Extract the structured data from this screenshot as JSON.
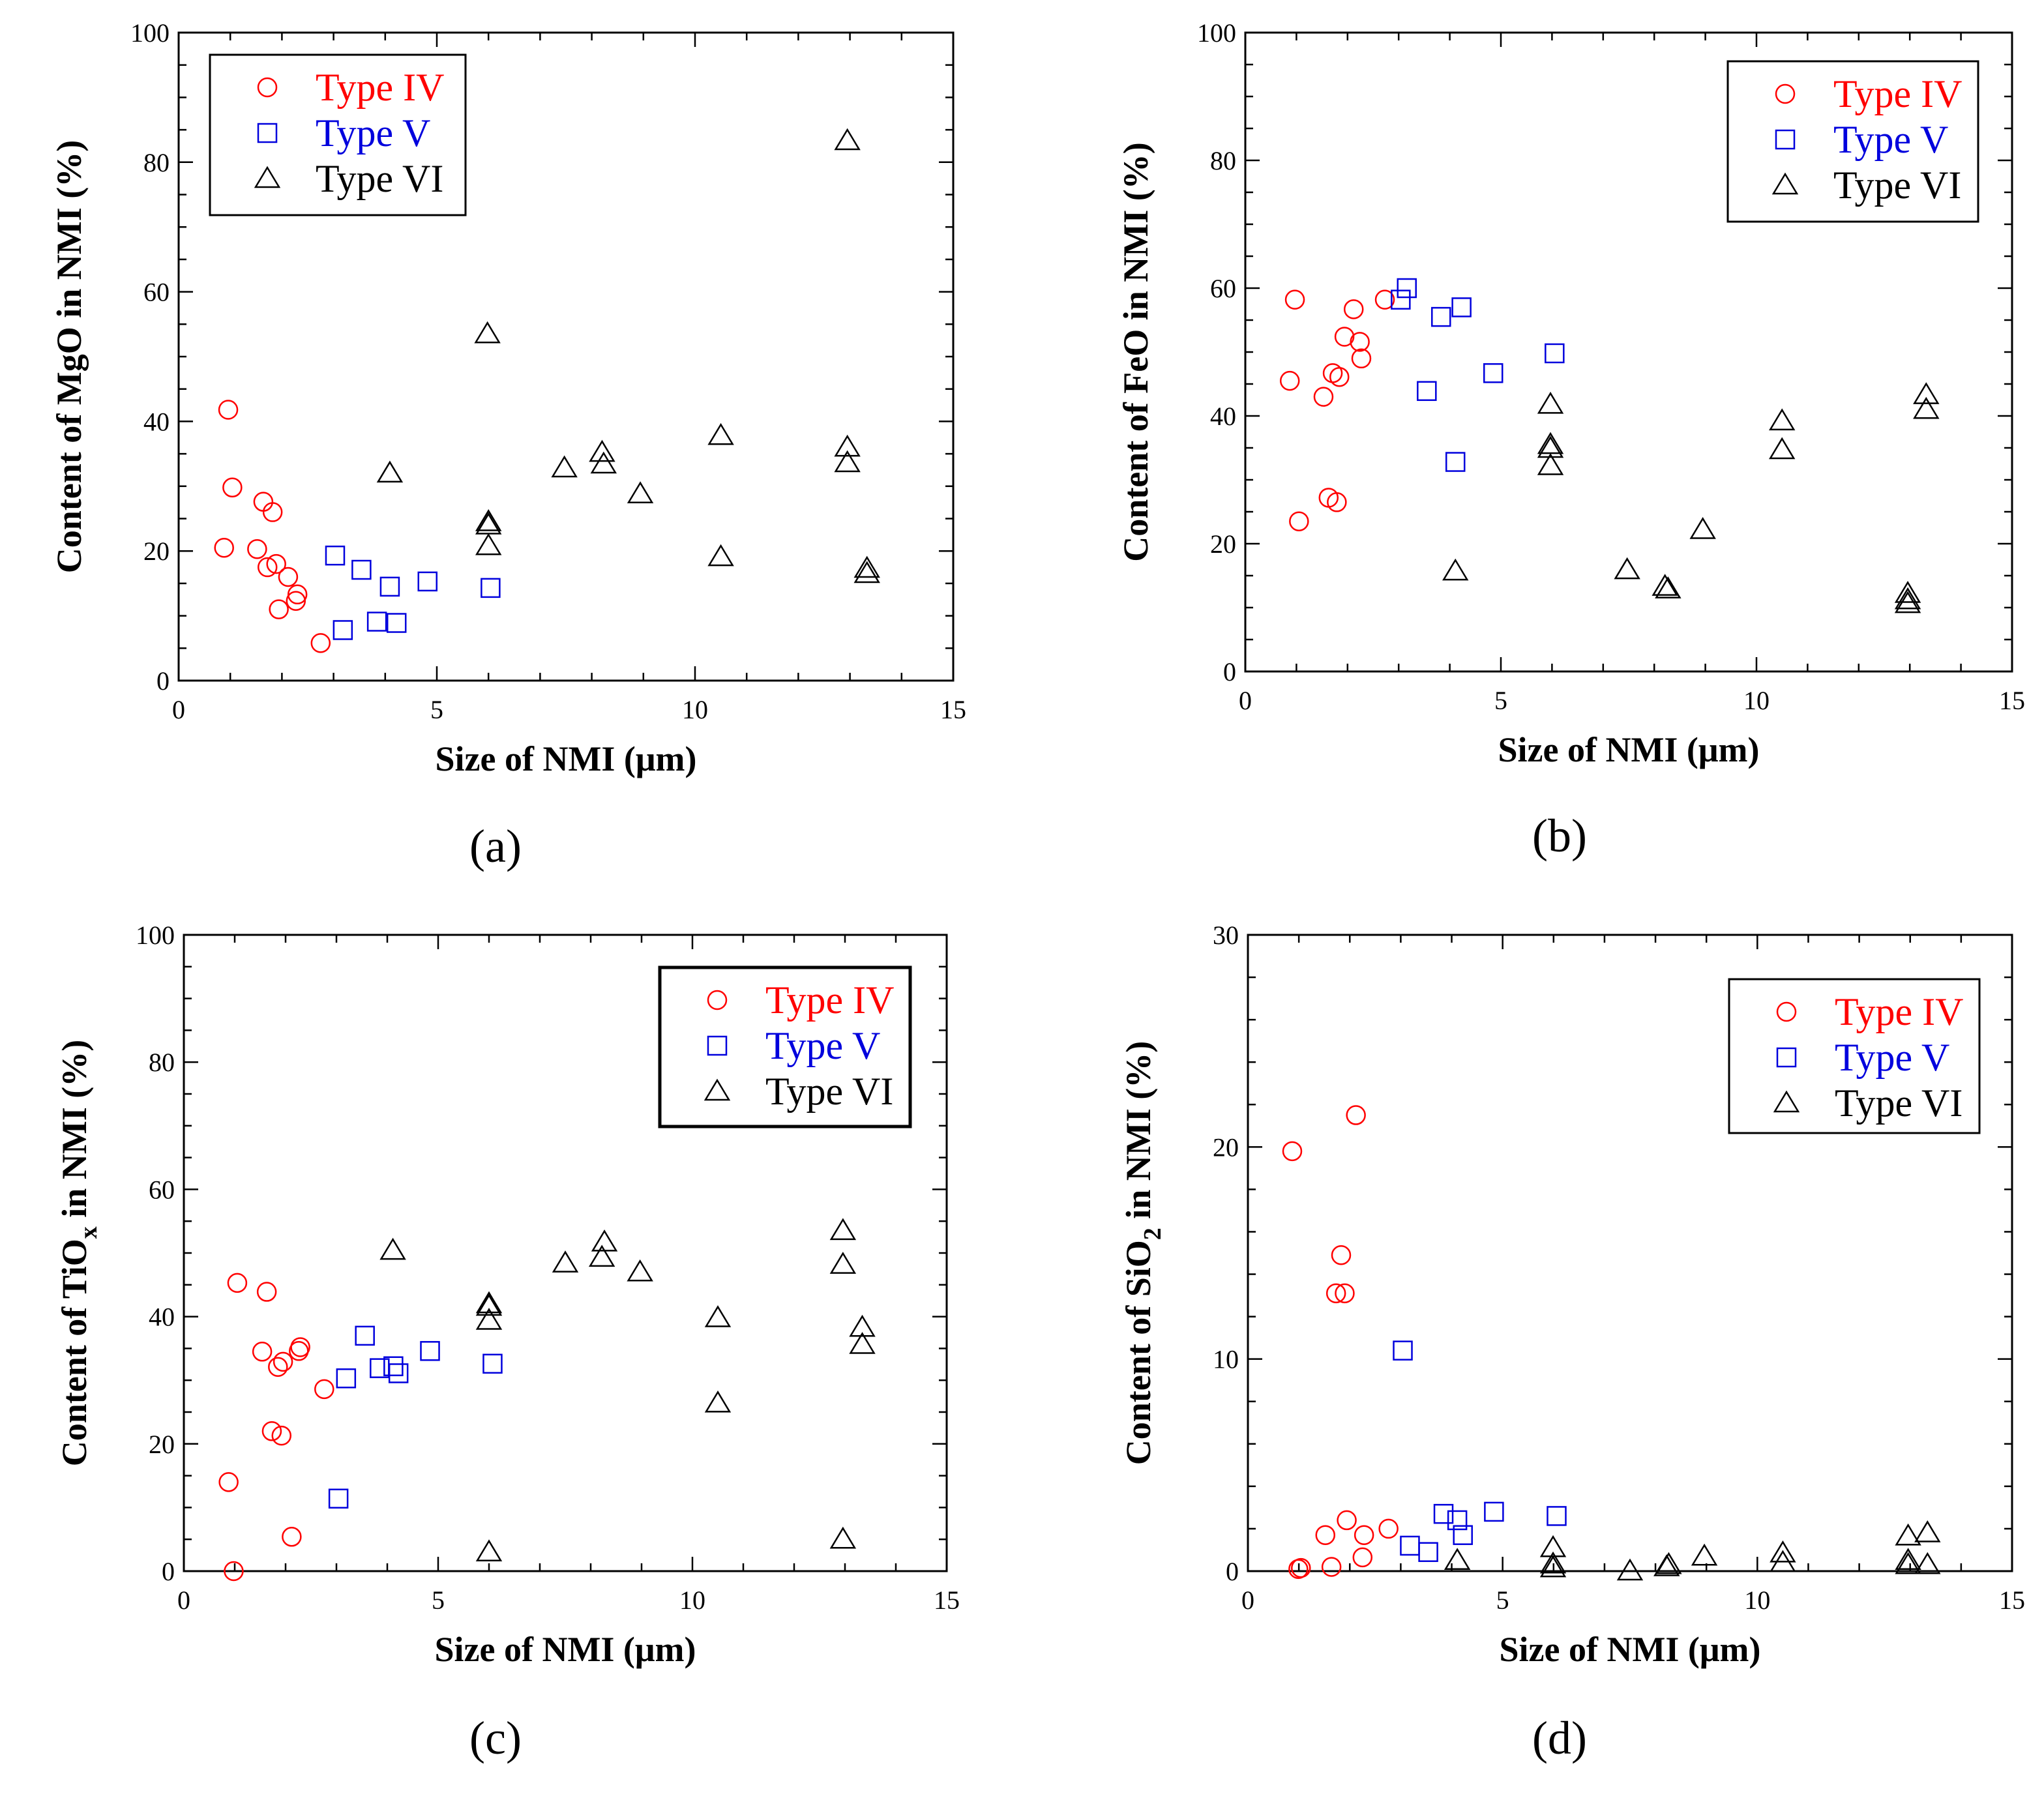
{
  "colors": {
    "Type IV": "#ff0000",
    "Type V": "#0000dd",
    "Type VI": "#000000"
  },
  "chart_data": [
    {
      "type": "scatter",
      "caption": "(a)",
      "xlabel": "Size of NMI   (μm)",
      "ylabel": {
        "pre": "Content of MgO in NMI   (%)",
        "sub": "",
        "post": ""
      },
      "xlim": [
        0,
        15
      ],
      "ylim": [
        0,
        100
      ],
      "xticks": [
        0,
        5,
        10,
        15
      ],
      "yticks": [
        0,
        20,
        40,
        60,
        80,
        100
      ],
      "x_minor_step": 1,
      "y_minor_step": 5,
      "legend_position": "top-left",
      "series": [
        {
          "name": "Type IV",
          "marker": "circle",
          "x": [
            0.88,
            0.96,
            1.04,
            1.52,
            1.64,
            1.72,
            1.82,
            1.89,
            1.94,
            2.12,
            2.27,
            2.3,
            2.75
          ],
          "y": [
            20.5,
            41.8,
            29.8,
            20.3,
            27.6,
            17.5,
            26,
            18,
            11,
            16,
            12.3,
            13.3,
            5.8
          ]
        },
        {
          "name": "Type V",
          "marker": "square",
          "x": [
            3.03,
            3.18,
            3.54,
            3.84,
            4.09,
            4.22,
            4.82,
            6.04
          ],
          "y": [
            19.3,
            7.8,
            17.1,
            9.1,
            14.5,
            8.9,
            15.3,
            14.3
          ]
        },
        {
          "name": "Type VI",
          "marker": "triangle",
          "x": [
            4.09,
            5.98,
            6.0,
            6.0,
            6.0,
            7.47,
            8.2,
            8.23,
            8.94,
            10.5,
            10.5,
            12.95,
            12.95,
            12.95,
            13.33,
            13.33
          ],
          "y": [
            32,
            53.5,
            24,
            24.5,
            20.8,
            32.8,
            35.2,
            33.4,
            28.8,
            37.8,
            19.1,
            83.3,
            36,
            33.6,
            17.3,
            16.5
          ]
        }
      ]
    },
    {
      "type": "scatter",
      "caption": "(b)",
      "xlabel": "Size of NMI   (μm)",
      "ylabel": {
        "pre": "Content of FeO in NMI   (%)",
        "sub": "",
        "post": ""
      },
      "xlim": [
        0,
        15
      ],
      "ylim": [
        0,
        100
      ],
      "xticks": [
        0,
        5,
        10,
        15
      ],
      "yticks": [
        0,
        20,
        40,
        60,
        80,
        100
      ],
      "x_minor_step": 1,
      "y_minor_step": 5,
      "legend_position": "top-right",
      "series": [
        {
          "name": "Type IV",
          "marker": "circle",
          "x": [
            0.87,
            0.97,
            1.05,
            1.53,
            1.63,
            1.71,
            1.79,
            1.84,
            1.94,
            2.12,
            2.24,
            2.27,
            2.73
          ],
          "y": [
            45.5,
            58.2,
            23.5,
            43,
            27.2,
            46.7,
            26.5,
            46.1,
            52.4,
            56.7,
            51.6,
            49,
            58.2
          ]
        },
        {
          "name": "Type V",
          "marker": "square",
          "x": [
            3.04,
            3.16,
            3.55,
            3.83,
            4.11,
            4.23,
            4.85,
            6.05
          ],
          "y": [
            58.2,
            60,
            43.9,
            55.5,
            32.8,
            57,
            46.7,
            49.8
          ]
        },
        {
          "name": "Type VI",
          "marker": "triangle",
          "x": [
            4.11,
            5.97,
            5.97,
            5.97,
            5.97,
            7.47,
            8.21,
            8.27,
            8.95,
            10.5,
            10.5,
            12.96,
            12.96,
            12.96,
            13.32,
            13.32
          ],
          "y": [
            15.7,
            41.8,
            35.5,
            34.9,
            32.2,
            15.9,
            13.3,
            12.9,
            22.2,
            39.2,
            34.7,
            12.2,
            11.2,
            10.6,
            43.3,
            41
          ]
        }
      ]
    },
    {
      "type": "scatter",
      "caption": "(c)",
      "xlabel": "Size of NMI   (μm)",
      "ylabel": {
        "pre": "Content of TiO",
        "sub": "x",
        "post": " in NMI   (%)"
      },
      "xlim": [
        0,
        15
      ],
      "ylim": [
        0,
        100
      ],
      "xticks": [
        0,
        5,
        10,
        15
      ],
      "yticks": [
        0,
        20,
        40,
        60,
        80,
        100
      ],
      "x_minor_step": 1,
      "y_minor_step": 5,
      "legend_position": "top-right",
      "series": [
        {
          "name": "Type IV",
          "marker": "circle",
          "x": [
            0.88,
            0.98,
            1.05,
            1.54,
            1.63,
            1.73,
            1.85,
            1.92,
            1.95,
            2.12,
            2.26,
            2.29,
            2.76
          ],
          "y": [
            14,
            0,
            45.3,
            34.5,
            43.9,
            22,
            32.1,
            21.3,
            32.9,
            5.4,
            34.6,
            35.2,
            28.6
          ]
        },
        {
          "name": "Type V",
          "marker": "square",
          "x": [
            3.04,
            3.19,
            3.56,
            3.85,
            4.12,
            4.22,
            4.84,
            6.07
          ],
          "y": [
            11.4,
            30.3,
            37,
            31.9,
            32.2,
            31.1,
            34.6,
            32.6
          ]
        },
        {
          "name": "Type VI",
          "marker": "triangle",
          "x": [
            4.11,
            6.0,
            6.0,
            6.0,
            6.0,
            7.5,
            8.27,
            8.22,
            8.97,
            10.5,
            10.5,
            12.96,
            12.96,
            12.96,
            13.34,
            13.34
          ],
          "y": [
            50.4,
            42,
            41.6,
            39.4,
            3,
            48.4,
            51.7,
            49.3,
            47,
            39.8,
            26.4,
            53.5,
            48.2,
            5,
            38.3,
            35.6
          ]
        }
      ]
    },
    {
      "type": "scatter",
      "caption": "(d)",
      "xlabel": "Size of NMI   (μm)",
      "ylabel": {
        "pre": "Content of SiO",
        "sub": "2",
        "post": " in NMI   (%)"
      },
      "xlim": [
        0,
        15
      ],
      "ylim": [
        0,
        30
      ],
      "xticks": [
        0,
        5,
        10,
        15
      ],
      "yticks": [
        0,
        10,
        20,
        30
      ],
      "x_minor_step": 1,
      "y_minor_step": 2,
      "legend_position": "top-right",
      "series": [
        {
          "name": "Type IV",
          "marker": "circle",
          "x": [
            0.87,
            2.12,
            1.83,
            1.73,
            1.9,
            0.99,
            1.04,
            1.52,
            1.64,
            1.94,
            2.28,
            2.25,
            2.76
          ],
          "y": [
            19.8,
            21.5,
            14.9,
            13.1,
            13.1,
            0.1,
            0.15,
            1.7,
            0.2,
            2.4,
            1.7,
            0.65,
            2.0
          ]
        },
        {
          "name": "Type V",
          "marker": "square",
          "x": [
            3.04,
            3.18,
            3.54,
            3.84,
            4.11,
            4.22,
            4.83,
            6.06
          ],
          "y": [
            10.4,
            1.2,
            0.9,
            2.7,
            2.4,
            1.7,
            2.8,
            2.6
          ]
        },
        {
          "name": "Type VI",
          "marker": "triangle",
          "x": [
            4.11,
            5.99,
            5.99,
            5.99,
            7.5,
            8.22,
            8.26,
            8.96,
            10.5,
            10.5,
            12.96,
            12.96,
            12.96,
            13.34,
            13.34
          ],
          "y": [
            0.5,
            1.1,
            0.33,
            0.15,
            0,
            0.2,
            0.3,
            0.7,
            0.85,
            0.4,
            1.65,
            0.5,
            0.3,
            1.8,
            0.3
          ]
        }
      ]
    }
  ]
}
